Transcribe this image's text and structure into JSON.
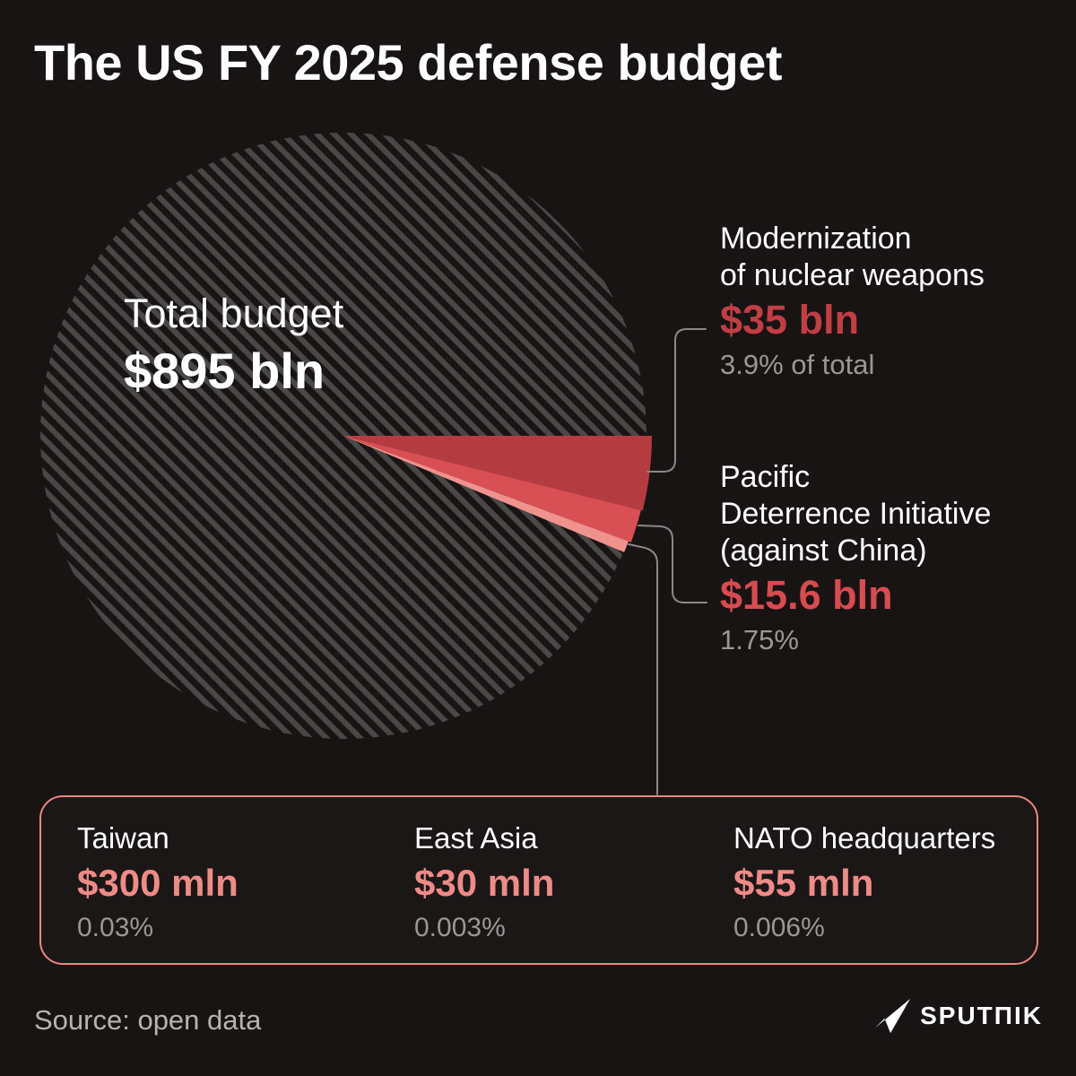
{
  "header": {
    "title": "The US FY 2025 defense budget"
  },
  "pie_center": {
    "label": "Total budget",
    "value": "$895 bln"
  },
  "callouts": {
    "nuclear": {
      "line1": "Modernization",
      "line2": "of nuclear weapons",
      "value": "$35 bln",
      "share": "3.9% of total"
    },
    "pacific": {
      "line1": "Pacific",
      "line2": "Deterrence Initiative",
      "line3": "(against China)",
      "value": "$15.6 bln",
      "share": "1.75%"
    }
  },
  "minor_box": {
    "items": [
      {
        "label": "Taiwan",
        "value": "$300 mln",
        "share": "0.03%"
      },
      {
        "label": "East Asia",
        "value": "$30 mln",
        "share": "0.003%"
      },
      {
        "label": "NATO headquarters",
        "value": "$55 mln",
        "share": "0.006%"
      }
    ]
  },
  "footer": {
    "source": "Source: open data",
    "brand": "SPUTNIK",
    "brand_display": "SPUTΠIK"
  },
  "colors": {
    "background": "#181414",
    "hatch_stripe": "#4a4747",
    "wedge_nuclear": "#b43c41",
    "wedge_pacific": "#d85053",
    "minor_slice": "#ef928e",
    "value_nuclear": "#c33e44",
    "value_pacific": "#d94b50",
    "value_minor": "#ee8b87",
    "box_border": "#e9887f",
    "connector": "#8b8888",
    "muted_text": "#9b9797",
    "source_text": "#b7b3b3"
  },
  "chart_data": {
    "type": "pie",
    "title": "The US FY 2025 defense budget",
    "total": {
      "label": "Total budget",
      "value": "$895 bln",
      "value_bln": 895
    },
    "slices": [
      {
        "label": "Modernization of nuclear weapons",
        "value": "$35 bln",
        "value_bln": 35,
        "pct": 3.9,
        "color": "#b43c41"
      },
      {
        "label": "Pacific Deterrence Initiative (against China)",
        "value": "$15.6 bln",
        "value_bln": 15.6,
        "pct": 1.75,
        "color": "#d85053"
      },
      {
        "label": "Taiwan",
        "value": "$300 mln",
        "value_bln": 0.3,
        "pct": 0.03,
        "color": "#ef928e"
      },
      {
        "label": "East Asia",
        "value": "$30 mln",
        "value_bln": 0.03,
        "pct": 0.003,
        "color": "#ef928e"
      },
      {
        "label": "NATO headquarters",
        "value": "$55 mln",
        "value_bln": 0.055,
        "pct": 0.006,
        "color": "#ef928e"
      }
    ],
    "legend_position": "right-callouts",
    "grid": false
  }
}
